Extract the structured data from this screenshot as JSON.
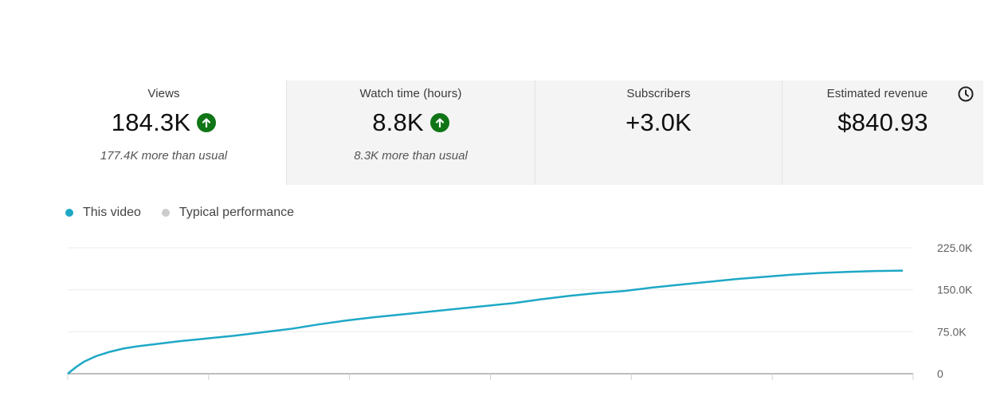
{
  "metrics": [
    {
      "label": "Views",
      "value": "184.3K",
      "trend": "up",
      "note": "177.4K more than usual"
    },
    {
      "label": "Watch time (hours)",
      "value": "8.8K",
      "trend": "up",
      "note": "8.3K more than usual"
    },
    {
      "label": "Subscribers",
      "value": "+3.0K",
      "trend": "",
      "note": ""
    },
    {
      "label": "Estimated revenue",
      "value": "$840.93",
      "trend": "",
      "note": "",
      "icon": "clock-icon"
    }
  ],
  "legend": {
    "this_video": "This video",
    "typical": "Typical performance"
  },
  "colors": {
    "accent": "#1ea8c6",
    "typical": "#cccccc",
    "trend_up": "#107516"
  },
  "chart_data": {
    "type": "line",
    "y_ticks": [
      "225.0K",
      "150.0K",
      "75.0K",
      "0"
    ],
    "ylim": [
      0,
      225000
    ],
    "grid": true,
    "series": [
      {
        "name": "This video",
        "x": [
          0,
          0.3,
          0.6,
          1,
          1.5,
          2,
          2.5,
          3,
          4,
          5,
          6,
          7,
          8,
          9,
          10,
          11,
          12,
          13,
          14,
          15,
          16,
          17,
          18,
          19,
          20,
          21,
          22,
          23,
          24,
          25,
          26,
          27,
          28,
          29,
          30
        ],
        "values": [
          0,
          12000,
          22000,
          31000,
          39000,
          45000,
          49000,
          52000,
          58000,
          63000,
          68000,
          74000,
          80000,
          88000,
          95000,
          101000,
          106000,
          111000,
          116000,
          121000,
          126000,
          133000,
          139000,
          144000,
          148000,
          154000,
          159000,
          164000,
          169000,
          173000,
          177000,
          180000,
          182000,
          183500,
          184300
        ]
      }
    ]
  }
}
